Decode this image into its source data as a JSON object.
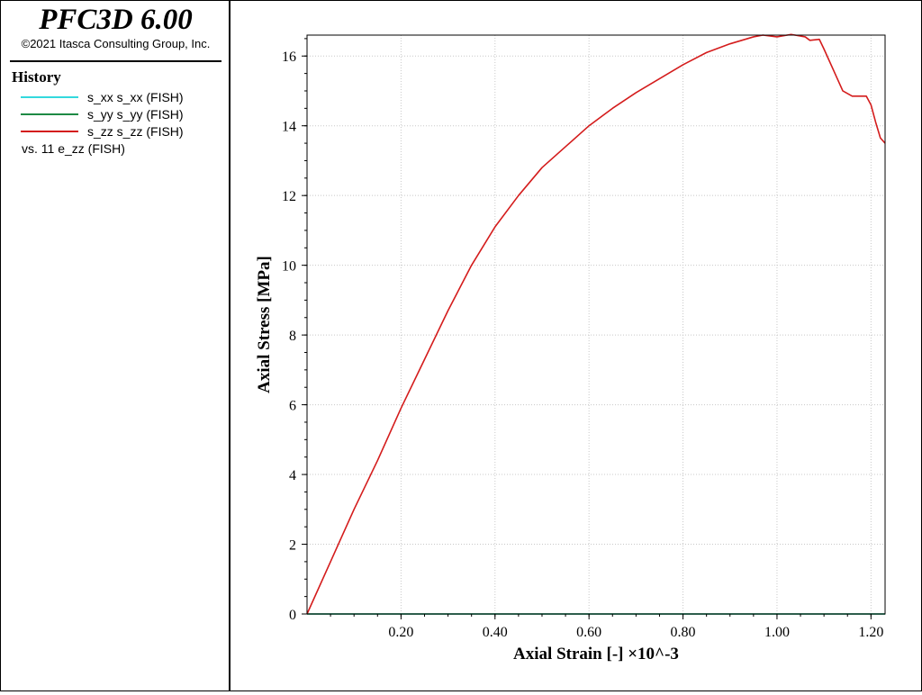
{
  "header": {
    "app_title": "PFC3D 6.00",
    "copyright": "©2021 Itasca Consulting Group, Inc."
  },
  "legend": {
    "heading": "History",
    "items": [
      {
        "label": "s_xx s_xx (FISH)",
        "color": "#33d9dd"
      },
      {
        "label": "s_yy s_yy (FISH)",
        "color": "#1e8a44"
      },
      {
        "label": "s_zz s_zz (FISH)",
        "color": "#d41c1c"
      }
    ],
    "vs_label": "vs. 11 e_zz (FISH)"
  },
  "chart_data": {
    "type": "line",
    "xlabel": "Axial Strain [-] ×10^-3",
    "ylabel": "Axial Stress [MPa]",
    "xlim": [
      0,
      1.23
    ],
    "ylim": [
      0,
      16.6
    ],
    "x_ticks": [
      {
        "value": 0.2,
        "label": "0.20"
      },
      {
        "value": 0.4,
        "label": "0.40"
      },
      {
        "value": 0.6,
        "label": "0.60"
      },
      {
        "value": 0.8,
        "label": "0.80"
      },
      {
        "value": 1.0,
        "label": "1.00"
      },
      {
        "value": 1.2,
        "label": "1.20"
      }
    ],
    "y_ticks": [
      {
        "value": 0,
        "label": "0"
      },
      {
        "value": 2,
        "label": "2"
      },
      {
        "value": 4,
        "label": "4"
      },
      {
        "value": 6,
        "label": "6"
      },
      {
        "value": 8,
        "label": "8"
      },
      {
        "value": 10,
        "label": "10"
      },
      {
        "value": 12,
        "label": "12"
      },
      {
        "value": 14,
        "label": "14"
      },
      {
        "value": 16,
        "label": "16"
      }
    ],
    "grid": true,
    "series": [
      {
        "name": "s_xx s_xx (FISH)",
        "color": "#33d9dd",
        "points": [
          [
            0,
            0
          ],
          [
            1.23,
            0
          ]
        ]
      },
      {
        "name": "s_yy s_yy (FISH)",
        "color": "#1e8a44",
        "points": [
          [
            0,
            0
          ],
          [
            1.23,
            0
          ]
        ]
      },
      {
        "name": "s_zz s_zz (FISH)",
        "color": "#d41c1c",
        "points": [
          [
            0,
            0
          ],
          [
            0.05,
            1.5
          ],
          [
            0.1,
            3.0
          ],
          [
            0.15,
            4.4
          ],
          [
            0.2,
            5.9
          ],
          [
            0.25,
            7.3
          ],
          [
            0.3,
            8.7
          ],
          [
            0.35,
            10.0
          ],
          [
            0.4,
            11.1
          ],
          [
            0.45,
            12.0
          ],
          [
            0.5,
            12.8
          ],
          [
            0.55,
            13.4
          ],
          [
            0.6,
            14.0
          ],
          [
            0.65,
            14.5
          ],
          [
            0.7,
            14.95
          ],
          [
            0.75,
            15.35
          ],
          [
            0.8,
            15.75
          ],
          [
            0.85,
            16.1
          ],
          [
            0.9,
            16.35
          ],
          [
            0.95,
            16.55
          ],
          [
            0.97,
            16.6
          ],
          [
            1.0,
            16.55
          ],
          [
            1.03,
            16.62
          ],
          [
            1.06,
            16.55
          ],
          [
            1.07,
            16.45
          ],
          [
            1.09,
            16.48
          ],
          [
            1.1,
            16.2
          ],
          [
            1.12,
            15.6
          ],
          [
            1.14,
            15.0
          ],
          [
            1.16,
            14.85
          ],
          [
            1.19,
            14.85
          ],
          [
            1.2,
            14.6
          ],
          [
            1.21,
            14.1
          ],
          [
            1.22,
            13.65
          ],
          [
            1.23,
            13.5
          ]
        ]
      }
    ]
  }
}
